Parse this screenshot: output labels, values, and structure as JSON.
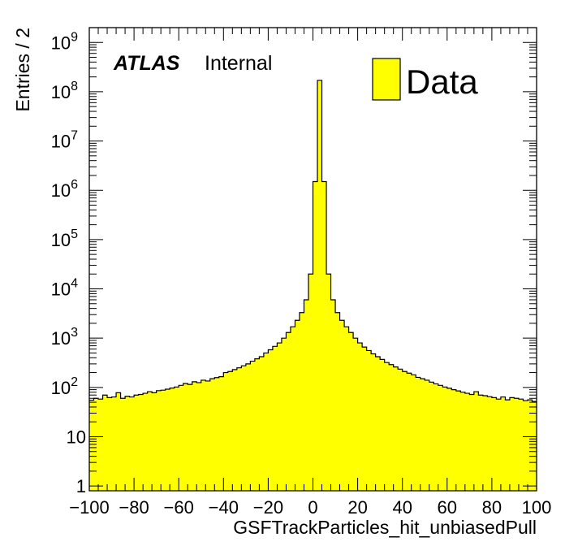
{
  "chart_data": {
    "type": "bar",
    "xlabel": "GSFTrackParticles_hit_unbiasedPull",
    "ylabel": "Entries / 2",
    "xlim": [
      -100,
      100
    ],
    "ylim": [
      0.8,
      2000000000
    ],
    "log_y": true,
    "grid": false,
    "bin_width": 2,
    "bin_edges_start": -100,
    "x_tick_labels": [
      "−100",
      "−80",
      "−60",
      "−40",
      "−20",
      "0",
      "20",
      "40",
      "60",
      "80",
      "100"
    ],
    "y_tick_labels": [
      {
        "base": "1",
        "exp": ""
      },
      {
        "base": "10",
        "exp": ""
      },
      {
        "base": "10",
        "exp": "2"
      },
      {
        "base": "10",
        "exp": "3"
      },
      {
        "base": "10",
        "exp": "4"
      },
      {
        "base": "10",
        "exp": "5"
      },
      {
        "base": "10",
        "exp": "6"
      },
      {
        "base": "10",
        "exp": "7"
      },
      {
        "base": "10",
        "exp": "8"
      },
      {
        "base": "10",
        "exp": "9"
      }
    ],
    "legend": {
      "position": "top-right",
      "entries": [
        "Data"
      ]
    },
    "series": [
      {
        "name": "Data",
        "color": "#ffff00",
        "edge_color": "#000000",
        "values": [
          55,
          60,
          58,
          70,
          62,
          64,
          78,
          60,
          66,
          64,
          70,
          72,
          76,
          82,
          78,
          86,
          88,
          92,
          97,
          102,
          110,
          120,
          115,
          130,
          125,
          140,
          135,
          150,
          158,
          165,
          200,
          210,
          230,
          250,
          275,
          300,
          340,
          380,
          420,
          500,
          580,
          680,
          800,
          1000,
          1300,
          1700,
          2300,
          3300,
          6000,
          20000,
          1500000,
          170000000,
          1500000,
          20000,
          6000,
          3300,
          2300,
          1700,
          1300,
          1000,
          800,
          660,
          560,
          480,
          420,
          370,
          320,
          290,
          260,
          235,
          210,
          195,
          180,
          160,
          150,
          140,
          128,
          118,
          110,
          102,
          96,
          90,
          85,
          80,
          76,
          72,
          82,
          70,
          68,
          65,
          62,
          58,
          64,
          56,
          62,
          60,
          58,
          54,
          56,
          52
        ]
      }
    ]
  },
  "labels": {
    "atlas": "ATLAS",
    "internal": "Internal"
  }
}
